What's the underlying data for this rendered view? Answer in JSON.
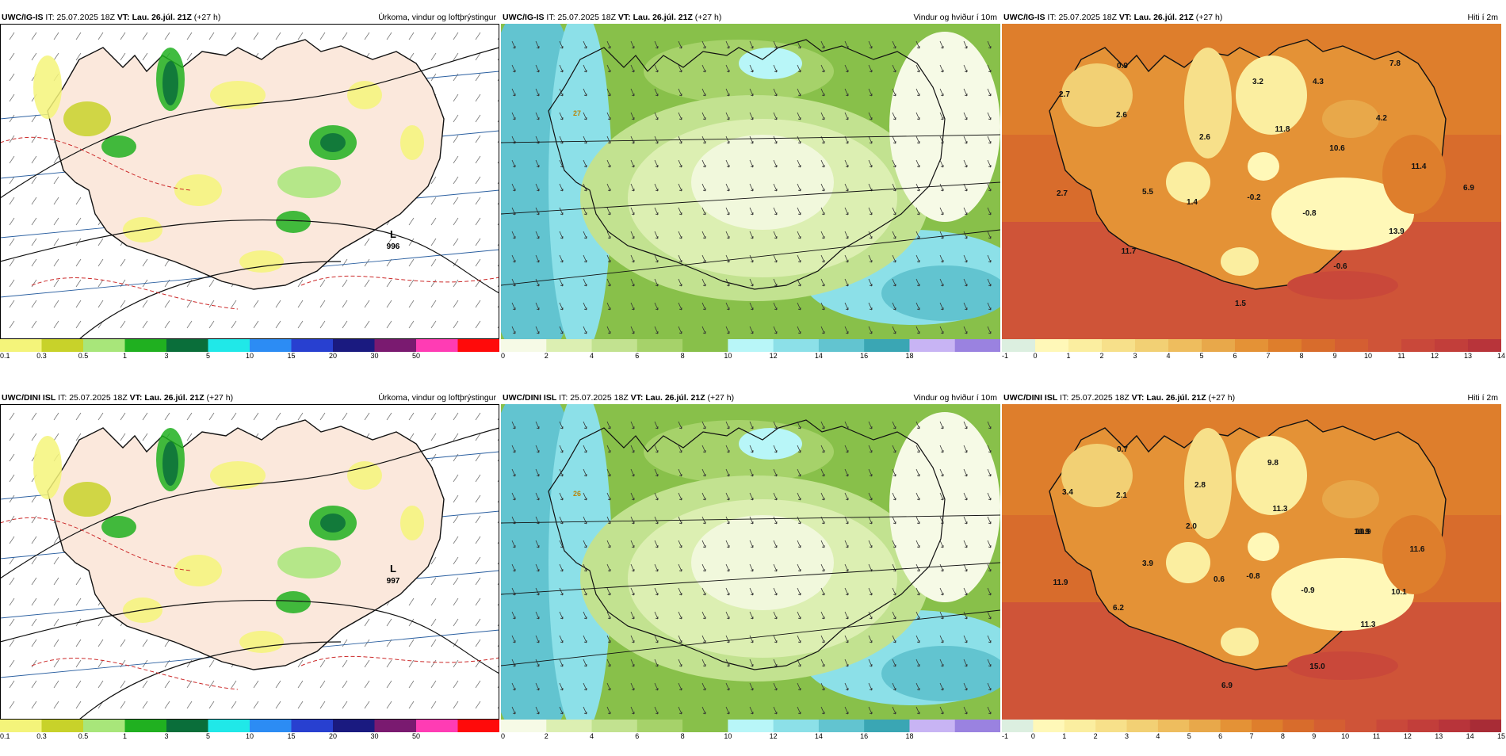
{
  "panels": [
    {
      "model": "UWC/IG-IS",
      "it_label": "IT:",
      "it": "25.07.2025 18Z",
      "vt_label": "VT:",
      "vt": "Lau. 26.júl. 21Z",
      "lead": "(+27 h)",
      "title": "Úrkoma, vindur og loftþrýstingur",
      "kind": "precip",
      "legend_colors": [
        "#f4f47a",
        "#c8d22a",
        "#a8e67a",
        "#20b020",
        "#0a6e3a",
        "#20e8e8",
        "#2c8cf4",
        "#2840d0",
        "#1a1a80",
        "#7a1a70",
        "#ff3cb4",
        "#ff0a0a"
      ],
      "legend_labels": [
        "0.1",
        "0.3",
        "0.5",
        "1",
        "3",
        "5",
        "10",
        "15",
        "20",
        "30",
        "50"
      ],
      "lows": [
        {
          "letter": "L",
          "value": "996"
        }
      ],
      "point_values": []
    },
    {
      "model": "UWC/IG-IS",
      "it_label": "IT:",
      "it": "25.07.2025 18Z",
      "vt_label": "VT:",
      "vt": "Lau. 26.júl. 21Z",
      "lead": "(+27 h)",
      "title": "Vindur og hviður í 10m",
      "kind": "wind",
      "legend_colors": [
        "#f6fae6",
        "#dcefb2",
        "#c2e290",
        "#a6d26a",
        "#88c04a",
        "#b8f6f8",
        "#8ce0e8",
        "#62c4d0",
        "#3aa6b4",
        "#c8b4f4",
        "#9a82e0"
      ],
      "legend_labels": [
        "0",
        "2",
        "4",
        "6",
        "8",
        "10",
        "12",
        "14",
        "16",
        "18"
      ],
      "gust_label": "27",
      "lows": [],
      "point_values": []
    },
    {
      "model": "UWC/IG-IS",
      "it_label": "IT:",
      "it": "25.07.2025 18Z",
      "vt_label": "VT:",
      "vt": "Lau. 26.júl. 21Z",
      "lead": "(+27 h)",
      "title": "Hiti í 2m",
      "kind": "temp",
      "legend_colors": [
        "#dcefe0",
        "#fff8b8",
        "#fbeea0",
        "#f7e08a",
        "#f2d074",
        "#eebd5e",
        "#e8a84a",
        "#e49236",
        "#de7e2c",
        "#d86c2c",
        "#d45e32",
        "#cf5438",
        "#c9483a",
        "#c23e3a",
        "#b8343a"
      ],
      "legend_labels": [
        "-1",
        "0",
        "1",
        "2",
        "3",
        "4",
        "5",
        "6",
        "7",
        "8",
        "9",
        "10",
        "11",
        "12",
        "13",
        "14"
      ],
      "lows": [],
      "point_values": [
        "0.9",
        "3.2",
        "4.3",
        "7.8",
        "2.7",
        "2.6",
        "2.6",
        "11.8",
        "10.6",
        "4.2",
        "11.4",
        "6.9",
        "2.7",
        "5.5",
        "1.4",
        "-0.2",
        "-0.8",
        "13.9",
        "11.7",
        "-0.6",
        "1.5"
      ]
    },
    {
      "model": "UWC/DINI ISL",
      "it_label": "IT:",
      "it": "25.07.2025 18Z",
      "vt_label": "VT:",
      "vt": "Lau. 26.júl. 21Z",
      "lead": "(+27 h)",
      "title": "Úrkoma, vindur og loftþrýstingur",
      "kind": "precip",
      "legend_colors": [
        "#f4f47a",
        "#c8d22a",
        "#a8e67a",
        "#20b020",
        "#0a6e3a",
        "#20e8e8",
        "#2c8cf4",
        "#2840d0",
        "#1a1a80",
        "#7a1a70",
        "#ff3cb4",
        "#ff0a0a"
      ],
      "legend_labels": [
        "0.1",
        "0.3",
        "0.5",
        "1",
        "3",
        "5",
        "10",
        "15",
        "20",
        "30",
        "50"
      ],
      "lows": [
        {
          "letter": "L",
          "value": "997"
        }
      ],
      "point_values": []
    },
    {
      "model": "UWC/DINI ISL",
      "it_label": "IT:",
      "it": "25.07.2025 18Z",
      "vt_label": "VT:",
      "vt": "Lau. 26.júl. 21Z",
      "lead": "(+27 h)",
      "title": "Vindur og hviður í 10m",
      "kind": "wind",
      "legend_colors": [
        "#f6fae6",
        "#dcefb2",
        "#c2e290",
        "#a6d26a",
        "#88c04a",
        "#b8f6f8",
        "#8ce0e8",
        "#62c4d0",
        "#3aa6b4",
        "#c8b4f4",
        "#9a82e0"
      ],
      "legend_labels": [
        "0",
        "2",
        "4",
        "6",
        "8",
        "10",
        "12",
        "14",
        "16",
        "18"
      ],
      "gust_label": "26",
      "lows": [],
      "point_values": []
    },
    {
      "model": "UWC/DINI ISL",
      "it_label": "IT:",
      "it": "25.07.2025 18Z",
      "vt_label": "VT:",
      "vt": "Lau. 26.júl. 21Z",
      "lead": "(+27 h)",
      "title": "Hiti í 2m",
      "kind": "temp",
      "legend_colors": [
        "#dcefe0",
        "#fff8b8",
        "#fbeea0",
        "#f7e08a",
        "#f2d074",
        "#eebd5e",
        "#e8a84a",
        "#e49236",
        "#de7e2c",
        "#d86c2c",
        "#d45e32",
        "#cf5438",
        "#c9483a",
        "#c23e3a",
        "#b8343a",
        "#a82c36"
      ],
      "legend_labels": [
        "-1",
        "0",
        "1",
        "2",
        "3",
        "4",
        "5",
        "6",
        "7",
        "8",
        "9",
        "10",
        "11",
        "12",
        "13",
        "14",
        "15"
      ],
      "lows": [],
      "point_values": [
        "0.7",
        "3.4",
        "2.1",
        "2.8",
        "9.8",
        "11.3",
        "2.0",
        "10.9",
        "10.9",
        "11.6",
        "3.9",
        "11.9",
        "0.6",
        "-0.8",
        "-0.9",
        "10.1",
        "6.2",
        "11.3",
        "15.0",
        "6.9"
      ]
    }
  ]
}
